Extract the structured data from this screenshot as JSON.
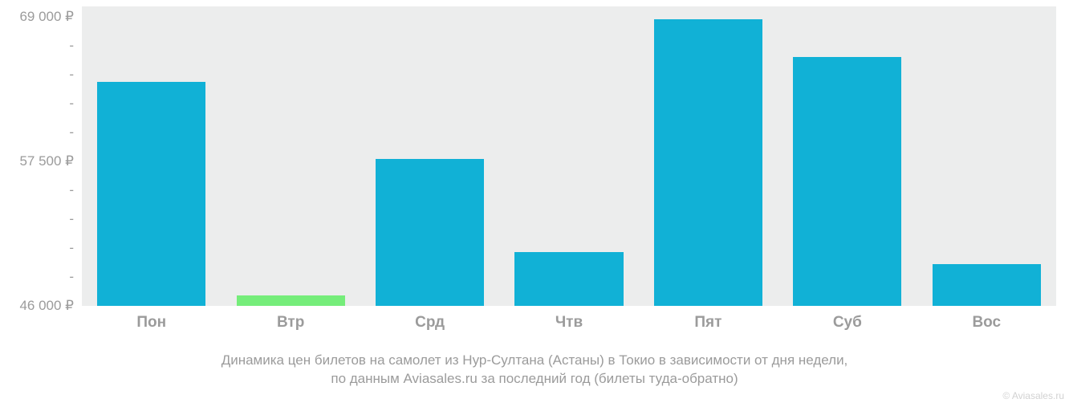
{
  "chart": {
    "type": "bar",
    "background_color": "#ffffff",
    "plot_background_color": "#eceded",
    "axis_text_color": "#9b9b9b",
    "bar_width_ratio": 0.78,
    "y_axis": {
      "min": 46000,
      "max": 69800,
      "major_ticks": [
        {
          "value": 69000,
          "label": "69 000 ₽"
        },
        {
          "value": 57500,
          "label": "57 500 ₽"
        },
        {
          "value": 46000,
          "label": "46 000 ₽"
        }
      ],
      "minor_tick_step": 2300,
      "minor_tick_label": "-"
    },
    "categories": [
      "Пон",
      "Втр",
      "Срд",
      "Чтв",
      "Пят",
      "Суб",
      "Вос"
    ],
    "values": [
      63800,
      46800,
      57700,
      50300,
      68800,
      65800,
      49300
    ],
    "bar_colors": [
      "#11b1d6",
      "#75ed7a",
      "#11b1d6",
      "#11b1d6",
      "#11b1d6",
      "#11b1d6",
      "#11b1d6"
    ]
  },
  "caption": {
    "line1": "Динамика цен билетов на самолет из Нур-Султана (Астаны) в Токио в зависимости от дня недели,",
    "line2": "по данным Aviasales.ru за последний год (билеты туда-обратно)"
  },
  "watermark": "© Aviasales.ru"
}
